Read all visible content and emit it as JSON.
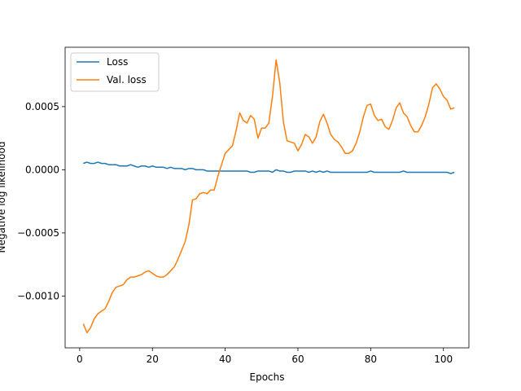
{
  "chart_data": {
    "type": "line",
    "title": "",
    "xlabel": "Epochs",
    "ylabel": "Negative log likelihood",
    "xlim": [
      -4,
      107
    ],
    "ylim": [
      -0.00141,
      0.00097
    ],
    "x_ticks": [
      0,
      20,
      40,
      60,
      80,
      100
    ],
    "x_tick_labels": [
      "0",
      "20",
      "40",
      "60",
      "80",
      "100"
    ],
    "y_ticks": [
      -0.001,
      -0.0005,
      0.0,
      0.0005
    ],
    "y_tick_labels": [
      "−0.0010",
      "−0.0005",
      "0.0000",
      "0.0005"
    ],
    "grid": false,
    "legend_position": "top-left",
    "series": [
      {
        "name": "Loss",
        "color": "#1f77b4",
        "x": [
          1,
          2,
          3,
          4,
          5,
          6,
          7,
          8,
          9,
          10,
          11,
          12,
          13,
          14,
          15,
          16,
          17,
          18,
          19,
          20,
          21,
          22,
          23,
          24,
          25,
          26,
          27,
          28,
          29,
          30,
          31,
          32,
          33,
          34,
          35,
          36,
          37,
          38,
          39,
          40,
          41,
          42,
          43,
          44,
          45,
          46,
          47,
          48,
          49,
          50,
          51,
          52,
          53,
          54,
          55,
          56,
          57,
          58,
          59,
          60,
          61,
          62,
          63,
          64,
          65,
          66,
          67,
          68,
          69,
          70,
          71,
          72,
          73,
          74,
          75,
          76,
          77,
          78,
          79,
          80,
          81,
          82,
          83,
          84,
          85,
          86,
          87,
          88,
          89,
          90,
          91,
          92,
          93,
          94,
          95,
          96,
          97,
          98,
          99,
          100,
          101,
          102,
          103
        ],
        "y": [
          5e-05,
          6e-05,
          5e-05,
          5e-05,
          6e-05,
          5e-05,
          5e-05,
          4e-05,
          4e-05,
          4e-05,
          3e-05,
          3e-05,
          3e-05,
          4e-05,
          3e-05,
          2e-05,
          3e-05,
          3e-05,
          2e-05,
          3e-05,
          2e-05,
          2e-05,
          2e-05,
          1e-05,
          2e-05,
          1e-05,
          1e-05,
          1e-05,
          0.0,
          1e-05,
          1e-05,
          0.0,
          0.0,
          0.0,
          -1e-05,
          -1e-05,
          -1e-05,
          -1e-05,
          -1e-05,
          -1e-05,
          -1e-05,
          -1e-05,
          -1e-05,
          -1e-05,
          -1e-05,
          -1e-05,
          -2e-05,
          -2e-05,
          -1e-05,
          -1e-05,
          -1e-05,
          -1e-05,
          -2e-05,
          0.0,
          -1e-05,
          -1e-05,
          -2e-05,
          -2e-05,
          -1e-05,
          -1e-05,
          -1e-05,
          -1e-05,
          -2e-05,
          -1e-05,
          -2e-05,
          -1e-05,
          -2e-05,
          -1e-05,
          -2e-05,
          -2e-05,
          -2e-05,
          -2e-05,
          -2e-05,
          -2e-05,
          -2e-05,
          -2e-05,
          -2e-05,
          -2e-05,
          -2e-05,
          -1e-05,
          -2e-05,
          -2e-05,
          -2e-05,
          -2e-05,
          -2e-05,
          -2e-05,
          -2e-05,
          -2e-05,
          -1e-05,
          -2e-05,
          -2e-05,
          -2e-05,
          -2e-05,
          -2e-05,
          -2e-05,
          -2e-05,
          -2e-05,
          -2e-05,
          -2e-05,
          -2e-05,
          -2e-05,
          -3e-05,
          -2e-05
        ]
      },
      {
        "name": "Val. loss",
        "color": "#ff7f0e",
        "x": [
          1,
          2,
          3,
          4,
          5,
          6,
          7,
          8,
          9,
          10,
          11,
          12,
          13,
          14,
          15,
          16,
          17,
          18,
          19,
          20,
          21,
          22,
          23,
          24,
          25,
          26,
          27,
          28,
          29,
          30,
          31,
          32,
          33,
          34,
          35,
          36,
          37,
          38,
          39,
          40,
          41,
          42,
          43,
          44,
          45,
          46,
          47,
          48,
          49,
          50,
          51,
          52,
          53,
          54,
          55,
          56,
          57,
          58,
          59,
          60,
          61,
          62,
          63,
          64,
          65,
          66,
          67,
          68,
          69,
          70,
          71,
          72,
          73,
          74,
          75,
          76,
          77,
          78,
          79,
          80,
          81,
          82,
          83,
          84,
          85,
          86,
          87,
          88,
          89,
          90,
          91,
          92,
          93,
          94,
          95,
          96,
          97,
          98,
          99,
          100,
          101,
          102,
          103
        ],
        "y": [
          -0.00122,
          -0.00129,
          -0.00125,
          -0.00118,
          -0.00114,
          -0.00112,
          -0.0011,
          -0.00104,
          -0.00097,
          -0.00093,
          -0.00092,
          -0.00091,
          -0.00087,
          -0.00085,
          -0.00085,
          -0.00084,
          -0.00083,
          -0.00081,
          -0.0008,
          -0.00082,
          -0.00084,
          -0.00085,
          -0.00085,
          -0.00083,
          -0.0008,
          -0.00077,
          -0.00071,
          -0.00064,
          -0.00057,
          -0.00044,
          -0.00024,
          -0.00023,
          -0.00019,
          -0.00018,
          -0.00019,
          -0.00016,
          -0.00016,
          -5e-05,
          4e-05,
          0.00013,
          0.00016,
          0.00019,
          0.00031,
          0.00045,
          0.00039,
          0.00037,
          0.00043,
          0.0004,
          0.00025,
          0.00033,
          0.00033,
          0.00037,
          0.00058,
          0.00087,
          0.00069,
          0.00038,
          0.00023,
          0.00022,
          0.00021,
          0.00015,
          0.0002,
          0.00028,
          0.00026,
          0.00021,
          0.00026,
          0.00038,
          0.00044,
          0.00037,
          0.00028,
          0.00024,
          0.00022,
          0.00018,
          0.00013,
          0.00013,
          0.00015,
          0.00021,
          0.0003,
          0.00042,
          0.00051,
          0.00052,
          0.00043,
          0.00039,
          0.0004,
          0.00034,
          0.00032,
          0.00039,
          0.00049,
          0.00053,
          0.00045,
          0.00042,
          0.00035,
          0.0003,
          0.0003,
          0.00035,
          0.00042,
          0.00052,
          0.00065,
          0.00068,
          0.00064,
          0.00058,
          0.00055,
          0.00048,
          0.00049
        ]
      }
    ]
  }
}
